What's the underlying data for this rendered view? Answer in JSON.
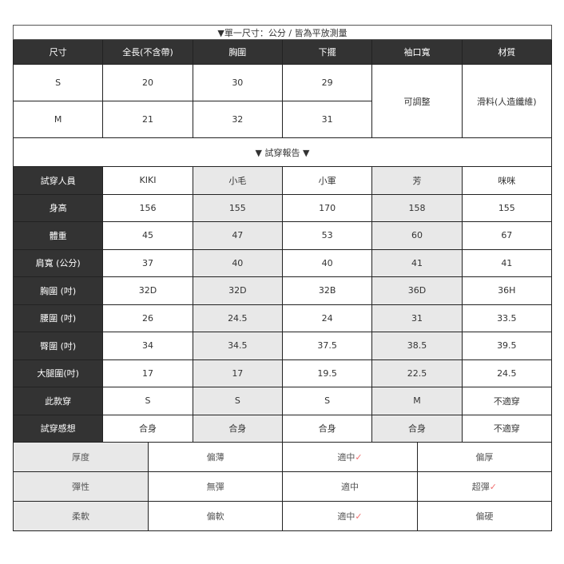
{
  "size_table": {
    "title": "▼單一尺寸：公分 / 皆為平放測量",
    "headers": [
      "尺寸",
      "全長(不含帶)",
      "胸圍",
      "下擺",
      "袖口寬",
      "材質"
    ],
    "rows": [
      {
        "size": "S",
        "length": "20",
        "chest": "30",
        "hem": "29"
      },
      {
        "size": "M",
        "length": "21",
        "chest": "32",
        "hem": "31"
      }
    ],
    "cuff": "可調整",
    "material": "滑料(人造纖維)"
  },
  "report": {
    "title": "▼ 試穿報告 ▼",
    "rows": [
      {
        "label": "試穿人員",
        "values": [
          "KIKI",
          "小毛",
          "小軍",
          "芳",
          "咪咪"
        ]
      },
      {
        "label": "身高",
        "values": [
          "156",
          "155",
          "170",
          "158",
          "155"
        ]
      },
      {
        "label": "體重",
        "values": [
          "45",
          "47",
          "53",
          "60",
          "67"
        ]
      },
      {
        "label": "肩寬 (公分)",
        "values": [
          "37",
          "40",
          "40",
          "41",
          "41"
        ]
      },
      {
        "label": "胸圍 (吋)",
        "values": [
          "32D",
          "32D",
          "32B",
          "36D",
          "36H"
        ]
      },
      {
        "label": "腰圍 (吋)",
        "values": [
          "26",
          "24.5",
          "24",
          "31",
          "33.5"
        ]
      },
      {
        "label": "臀圍 (吋)",
        "values": [
          "34",
          "34.5",
          "37.5",
          "38.5",
          "39.5"
        ]
      },
      {
        "label": "大腿圍(吋)",
        "values": [
          "17",
          "17",
          "19.5",
          "22.5",
          "24.5"
        ]
      },
      {
        "label": "此款穿",
        "values": [
          "S",
          "S",
          "S",
          "M",
          "不適穿"
        ]
      },
      {
        "label": "試穿感想",
        "values": [
          "合身",
          "合身",
          "合身",
          "合身",
          "不適穿"
        ]
      }
    ]
  },
  "fabric": {
    "check_mark": "✓",
    "check_color": "#f07070",
    "rows": [
      {
        "label": "厚度",
        "options": [
          "偏薄",
          "適中",
          "偏厚"
        ],
        "selected": 1
      },
      {
        "label": "彈性",
        "options": [
          "無彈",
          "適中",
          "超彈"
        ],
        "selected": 2
      },
      {
        "label": "柔軟",
        "options": [
          "偏軟",
          "適中",
          "偏硬"
        ],
        "selected": 1
      }
    ]
  }
}
